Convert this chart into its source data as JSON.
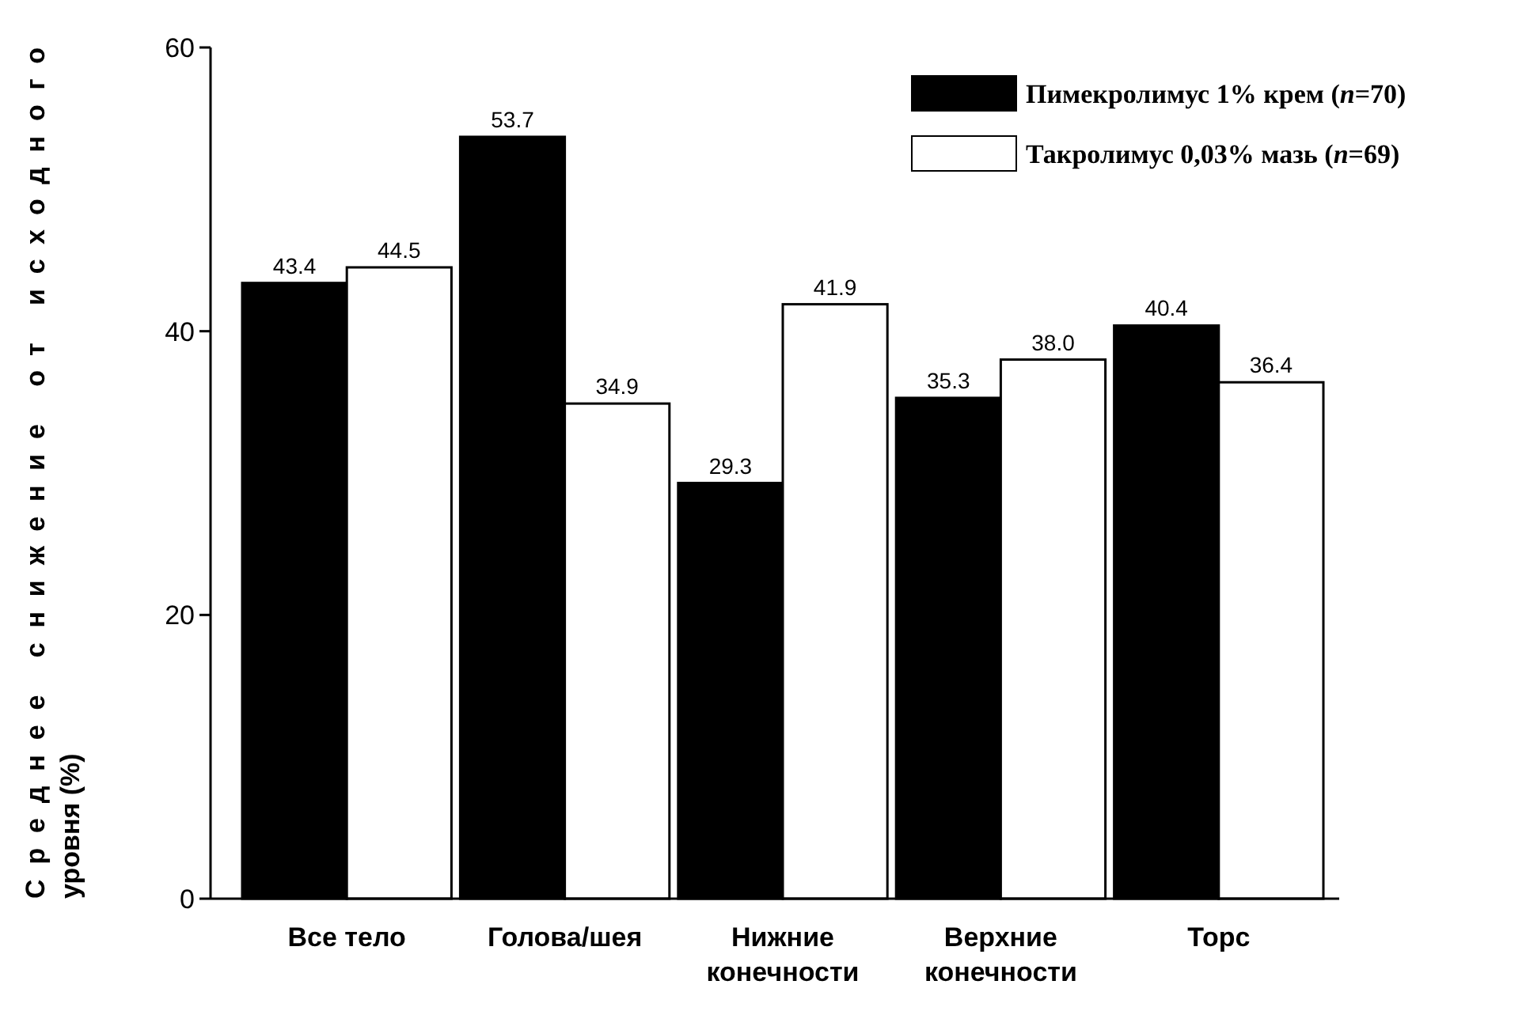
{
  "chart_data": {
    "type": "bar",
    "ylabel": "Среднее снижение от исходного уровня (%)",
    "categories": [
      "Все тело",
      "Голова/шея",
      "Нижние конечности",
      "Верхние конечности",
      "Торс"
    ],
    "series": [
      {
        "name": "Пимекролимус 1% крем (n=70)",
        "color": "#000000",
        "values": [
          43.4,
          53.7,
          29.3,
          35.3,
          40.4
        ],
        "value_labels": [
          "43.4",
          "53.7",
          "29.3",
          "35.3",
          "40.4"
        ]
      },
      {
        "name": "Такролимус 0,03% мазь (n=69)",
        "color": "#ffffff",
        "values": [
          44.5,
          34.9,
          41.9,
          38.0,
          36.4
        ],
        "value_labels": [
          "44.5",
          "34.9",
          "41.9",
          "38.0",
          "36.4"
        ]
      }
    ],
    "ylim": [
      0,
      60
    ],
    "yticks": [
      0,
      20,
      40,
      60
    ],
    "legend": "top right",
    "grid": false
  }
}
